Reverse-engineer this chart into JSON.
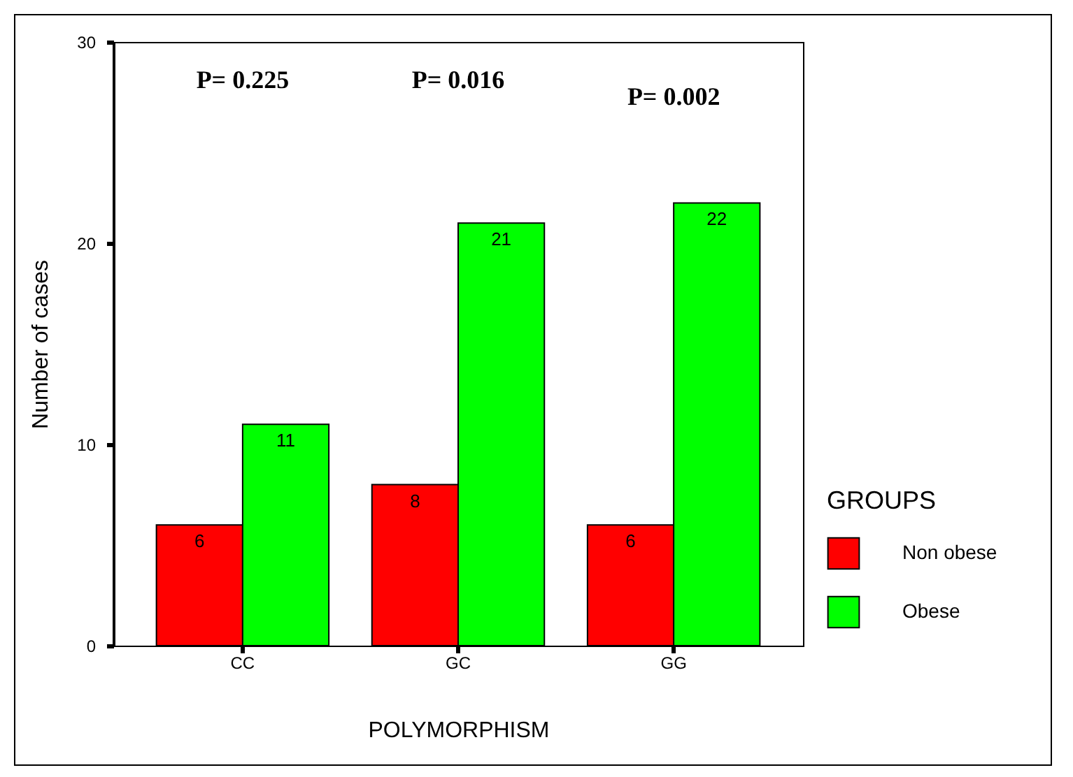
{
  "chart_data": {
    "type": "bar",
    "xlabel": "POLYMORPHISM",
    "ylabel": "Number of cases",
    "legend_title": "GROUPS",
    "categories": [
      "CC",
      "GC",
      "GG"
    ],
    "series": [
      {
        "name": "Non obese",
        "color": "#ff0000",
        "values": [
          6,
          8,
          6
        ]
      },
      {
        "name": "Obese",
        "color": "#00ff00",
        "values": [
          11,
          21,
          22
        ]
      }
    ],
    "ylim": [
      0,
      30
    ],
    "yticks": [
      0,
      10,
      20,
      30
    ],
    "grid": false,
    "legend": "right",
    "data_labels": true,
    "annotations": [
      "P= 0.225",
      "P= 0.016",
      "P= 0.002"
    ]
  }
}
